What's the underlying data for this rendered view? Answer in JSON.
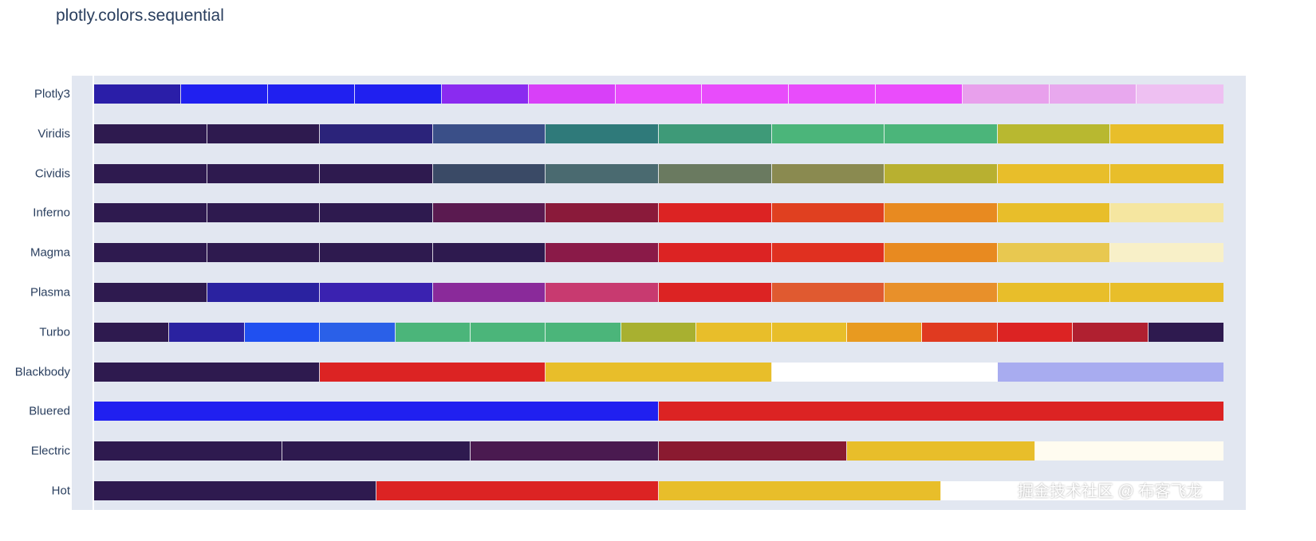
{
  "chart_data": {
    "type": "bar",
    "title": "plotly.colors.sequential",
    "orientation": "horizontal",
    "grid": false,
    "scales": [
      {
        "name": "Plotly3",
        "colors": [
          "#2a1ea8",
          "#2020f0",
          "#2020f0",
          "#2020f0",
          "#8a2bf0",
          "#d840f8",
          "#e84cfb",
          "#e84cfb",
          "#e84cfb",
          "#ea4cfb",
          "#e8a0ec",
          "#e8a8ee",
          "#eec0f2"
        ]
      },
      {
        "name": "Viridis",
        "colors": [
          "#2e1a4f",
          "#2e1a4f",
          "#2b237a",
          "#3a4f88",
          "#2f7a7a",
          "#3e9a78",
          "#4bb57a",
          "#4bb57a",
          "#b8b830",
          "#e8be2a"
        ]
      },
      {
        "name": "Cividis",
        "colors": [
          "#2e1a4f",
          "#2e1a4f",
          "#2e1a4f",
          "#3a4a66",
          "#4a6a70",
          "#6a7a60",
          "#8a8a50",
          "#b8b030",
          "#e8be2a",
          "#e8be2a"
        ]
      },
      {
        "name": "Inferno",
        "colors": [
          "#2e1a4f",
          "#2e1a4f",
          "#2e1a4f",
          "#5a1a50",
          "#8a1a3a",
          "#dc2323",
          "#e04020",
          "#e88a20",
          "#e8be2a",
          "#f5e6a0"
        ]
      },
      {
        "name": "Magma",
        "colors": [
          "#2e1a4f",
          "#2e1a4f",
          "#2e1a4f",
          "#2e1a4f",
          "#8a1a48",
          "#dc2323",
          "#e03020",
          "#e88a20",
          "#e8c850",
          "#f8f0c8"
        ]
      },
      {
        "name": "Plasma",
        "colors": [
          "#2e1a4f",
          "#2a22a0",
          "#3a22b0",
          "#8a2a9a",
          "#c83a70",
          "#dc2323",
          "#e05a30",
          "#e8902a",
          "#e8be2a",
          "#e8be2a"
        ]
      },
      {
        "name": "Turbo",
        "colors": [
          "#2e1a4f",
          "#2a22a0",
          "#2050f0",
          "#2a60e8",
          "#4bb57a",
          "#4bb57a",
          "#4bb57a",
          "#a8b030",
          "#e8be2a",
          "#e8be2a",
          "#e89a20",
          "#e03a20",
          "#dc2323",
          "#b02030",
          "#2e1a4f"
        ]
      },
      {
        "name": "Blackbody",
        "colors": [
          "#2e1a4f",
          "#dc2323",
          "#e8be2a",
          "#ffffff",
          "#a8acf0"
        ]
      },
      {
        "name": "Bluered",
        "colors": [
          "#2020f0",
          "#dc2323"
        ]
      },
      {
        "name": "Electric",
        "colors": [
          "#2e1a4f",
          "#2e1a4f",
          "#4a1a50",
          "#8a1a30",
          "#e8be2a",
          "#fffcf0"
        ]
      },
      {
        "name": "Hot",
        "colors": [
          "#2e1a4f",
          "#dc2323",
          "#e8be2a",
          "#ffffff"
        ]
      }
    ]
  },
  "watermark": "掘金技术社区 @ 布客飞龙"
}
